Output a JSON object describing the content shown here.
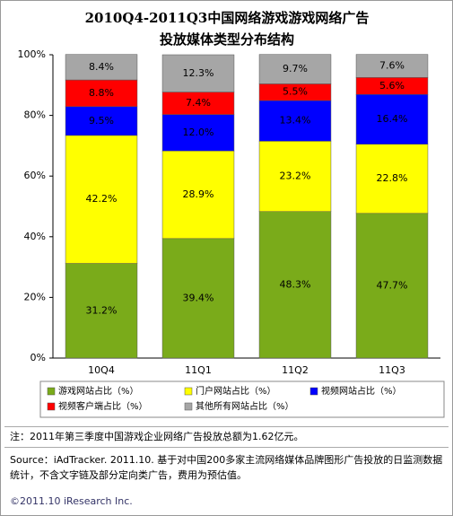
{
  "chart_data": {
    "type": "stacked-bar",
    "title": [
      "2010Q4-2011Q3中国网络游戏游戏网络广告",
      "投放媒体类型分布结构"
    ],
    "categories": [
      "10Q4",
      "11Q1",
      "11Q2",
      "11Q3"
    ],
    "series": [
      {
        "name": "游戏网站占比（%）",
        "color": "#7aab1a",
        "label_color": "#ffffff",
        "values": [
          31.2,
          39.4,
          48.3,
          47.7
        ],
        "value_labels": [
          "31.2%",
          "39.4%",
          "48.3%",
          "47.7%"
        ]
      },
      {
        "name": "门户网站占比（%）",
        "color": "#ffff00",
        "label_color": "#000000",
        "values": [
          42.2,
          28.9,
          23.2,
          22.8
        ],
        "value_labels": [
          "42.2%",
          "28.9%",
          "23.2%",
          "22.8%"
        ]
      },
      {
        "name": "视频网站占比（%）",
        "color": "#0000ff",
        "label_color": "#ffffff",
        "values": [
          9.5,
          12.0,
          13.4,
          16.4
        ],
        "value_labels": [
          "9.5%",
          "12.0%",
          "13.4%",
          "16.4%"
        ]
      },
      {
        "name": "视频客户端占比（%）",
        "color": "#ff0000",
        "label_color": "#ffffff",
        "values": [
          8.8,
          7.4,
          5.5,
          5.6
        ],
        "value_labels": [
          "8.8%",
          "7.4%",
          "5.5%",
          "5.6%"
        ]
      },
      {
        "name": "其他所有网站占比（%）",
        "color": "#a6a6a6",
        "label_color": "#000000",
        "values": [
          8.4,
          12.3,
          9.7,
          7.6
        ],
        "value_labels": [
          "8.4%",
          "12.3%",
          "9.7%",
          "7.6%"
        ]
      }
    ],
    "ylim": [
      0,
      100
    ],
    "yticks": [
      {
        "value": 0,
        "label": "0%"
      },
      {
        "value": 20,
        "label": "20%"
      },
      {
        "value": 40,
        "label": "40%"
      },
      {
        "value": 60,
        "label": "60%"
      },
      {
        "value": 80,
        "label": "80%"
      },
      {
        "value": 100,
        "label": "100%"
      }
    ],
    "note": "注：2011年第三季度中国游戏企业网络广告投放总额为1.62亿元。",
    "source": "Source：iAdTracker. 2011.10. 基于对中国200多家主流网络媒体品牌图形广告投放的日监测数据统计，不含文字链及部分定向类广告，费用为预估值。",
    "footer": "©2011.10 iResearch Inc."
  }
}
